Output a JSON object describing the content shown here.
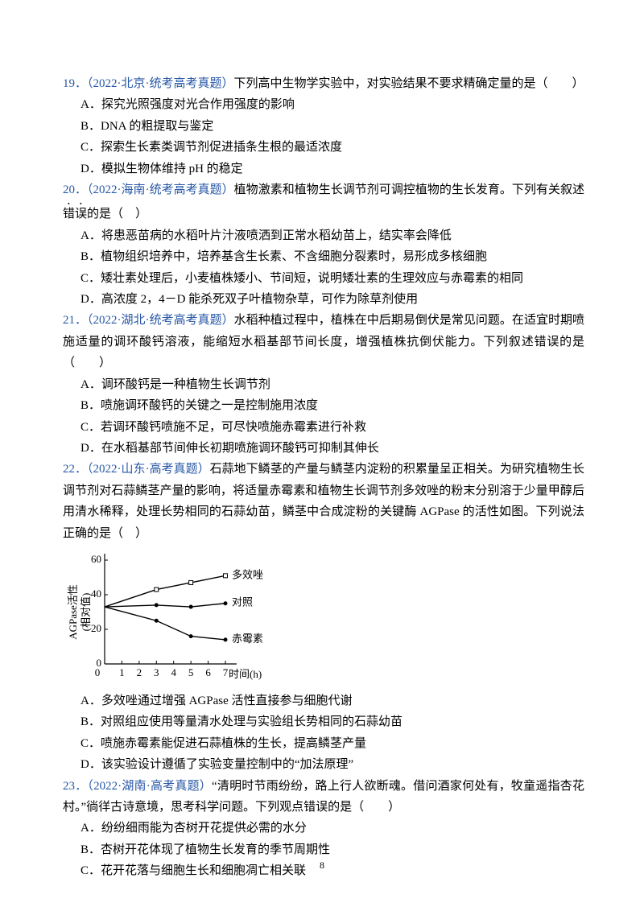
{
  "questions": [
    {
      "number": "19．",
      "source": "（2022·北京·统考高考真题）",
      "stem": "下列高中生物学实验中，对实验结果不要求精确定量的是（　　）",
      "options": [
        "A．探究光照强度对光合作用强度的影响",
        "B．DNA 的粗提取与鉴定",
        "C．探索生长素类调节剂促进插条生根的最适浓度",
        "D．模拟生物体维持 pH 的稳定"
      ]
    },
    {
      "number": "20．",
      "source": "（2022·海南·统考高考真题）",
      "stem": "植物激素和植物生长调节剂可调控植物的生长发育。下列有关叙述",
      "emphasis": "错误",
      "stem_end": "的是（　）",
      "options": [
        "A．将患恶苗病的水稻叶片汁液喷洒到正常水稻幼苗上，结实率会降低",
        "B．植物组织培养中，培养基含生长素、不含细胞分裂素时，易形成多核细胞",
        "C．矮壮素处理后，小麦植株矮小、节间短，说明矮壮素的生理效应与赤霉素的相同",
        "D．高浓度 2，4－D 能杀死双子叶植物杂草，可作为除草剂使用"
      ]
    },
    {
      "number": "21．",
      "source": "（2022·湖北·统考高考真题）",
      "stem": "水稻种植过程中，植株在中后期易倒伏是常见问题。在适宜时期喷施适量的调环酸钙溶液，能缩短水稻基部节间长度，增强植株抗倒伏能力。下列叙述错误的是（　　）",
      "options": [
        "A．调环酸钙是一种植物生长调节剂",
        "B．喷施调环酸钙的关键之一是控制施用浓度",
        "C．若调环酸钙喷施不足，可尽快喷施赤霉素进行补救",
        "D．在水稻基部节间伸长初期喷施调环酸钙可抑制其伸长"
      ]
    },
    {
      "number": "22．",
      "source": "（2022·山东·高考真题）",
      "stem": "石蒜地下鳞茎的产量与鳞茎内淀粉的积累量呈正相关。为研究植物生长调节剂对石蒜鳞茎产量的影响，将适量赤霉素和植物生长调节剂多效唑的粉末分别溶于少量甲醇后用清水稀释，处理长势相同的石蒜幼苗，鳞茎中合成淀粉的关键酶 AGPase 的活性如图。下列说法正确的是（　）",
      "options": [
        "A．多效唑通过增强 AGPase 活性直接参与细胞代谢",
        "B．对照组应使用等量清水处理与实验组长势相同的石蒜幼苗",
        "C．喷施赤霉素能促进石蒜植株的生长，提高鳞茎产量",
        "D．该实验设计遵循了实验变量控制中的“加法原理”"
      ]
    },
    {
      "number": "23．",
      "source": "（2022·湖南·高考真题）",
      "stem": "“清明时节雨纷纷，路上行人欲断魂。借问酒家何处有，牧童遥指杏花村。”徜徉古诗意境，思考科学问题。下列观点错误的是（　　）",
      "options": [
        "A．纷纷细雨能为杏树开花提供必需的水分",
        "B．杏树开花体现了植物生长发育的季节周期性",
        "C．花开花落与细胞生长和细胞凋亡相关联"
      ]
    }
  ],
  "chart_data": {
    "type": "line",
    "ylabel": "AGPase活性",
    "ylabel_sub": "(相对值)",
    "xlabel": "时间(h)",
    "x": [
      0,
      3,
      5,
      7
    ],
    "series": [
      {
        "name": "多效唑",
        "color": "#000000",
        "marker": "square",
        "values": [
          33,
          43,
          47,
          51
        ]
      },
      {
        "name": "对照",
        "color": "#000000",
        "marker": "circle",
        "values": [
          33,
          34,
          33,
          35
        ]
      },
      {
        "name": "赤霉素",
        "color": "#000000",
        "marker": "circle",
        "values": [
          33,
          25,
          16,
          14
        ]
      }
    ],
    "xlim": [
      0,
      7
    ],
    "ylim": [
      0,
      60
    ],
    "xticks": [
      0,
      1,
      2,
      3,
      4,
      5,
      6,
      7
    ],
    "yticks": [
      0,
      20,
      40,
      60
    ]
  },
  "page_number": "8"
}
